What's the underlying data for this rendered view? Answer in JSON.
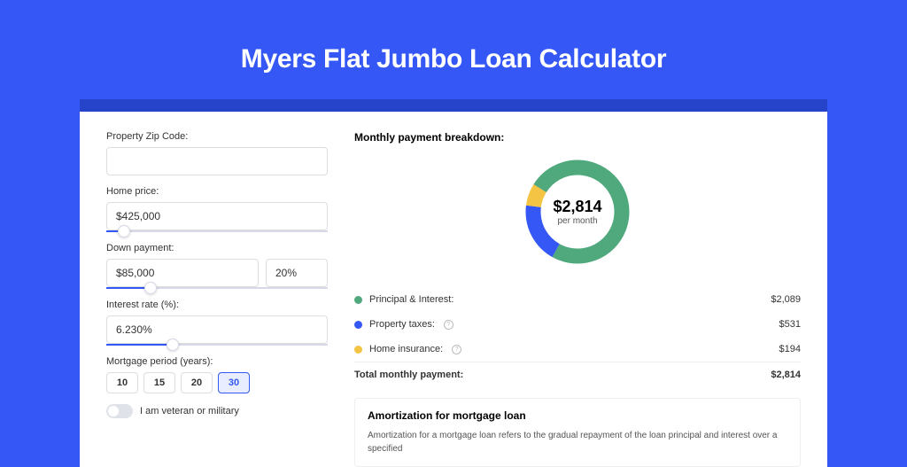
{
  "page": {
    "title": "Myers Flat Jumbo Loan Calculator",
    "background_color": "#3457f5",
    "banner_color": "#2644c9"
  },
  "form": {
    "zip": {
      "label": "Property Zip Code:",
      "value": ""
    },
    "home_price": {
      "label": "Home price:",
      "value": "$425,000",
      "slider_percent": 8
    },
    "down_payment": {
      "label": "Down payment:",
      "value": "$85,000",
      "percent": "20%",
      "slider_percent": 20
    },
    "interest_rate": {
      "label": "Interest rate (%):",
      "value": "6.230%",
      "slider_percent": 30
    },
    "period": {
      "label": "Mortgage period (years):",
      "options": [
        "10",
        "15",
        "20",
        "30"
      ],
      "selected": "30"
    },
    "veteran": {
      "label": "I am veteran or military",
      "checked": false
    }
  },
  "breakdown": {
    "title": "Monthly payment breakdown:",
    "donut": {
      "amount": "$2,814",
      "sub": "per month",
      "segments": [
        {
          "key": "principal_interest",
          "value": 2089,
          "color": "#4fa97d"
        },
        {
          "key": "property_taxes",
          "value": 531,
          "color": "#3457f5"
        },
        {
          "key": "home_insurance",
          "value": 194,
          "color": "#f4c444"
        }
      ],
      "stroke_width": 17
    },
    "items": [
      {
        "label": "Principal & Interest:",
        "value": "$2,089",
        "color": "#4fa97d",
        "info": false
      },
      {
        "label": "Property taxes:",
        "value": "$531",
        "color": "#3457f5",
        "info": true
      },
      {
        "label": "Home insurance:",
        "value": "$194",
        "color": "#f4c444",
        "info": true
      }
    ],
    "total": {
      "label": "Total monthly payment:",
      "value": "$2,814"
    }
  },
  "amortization": {
    "title": "Amortization for mortgage loan",
    "text": "Amortization for a mortgage loan refers to the gradual repayment of the loan principal and interest over a specified"
  }
}
